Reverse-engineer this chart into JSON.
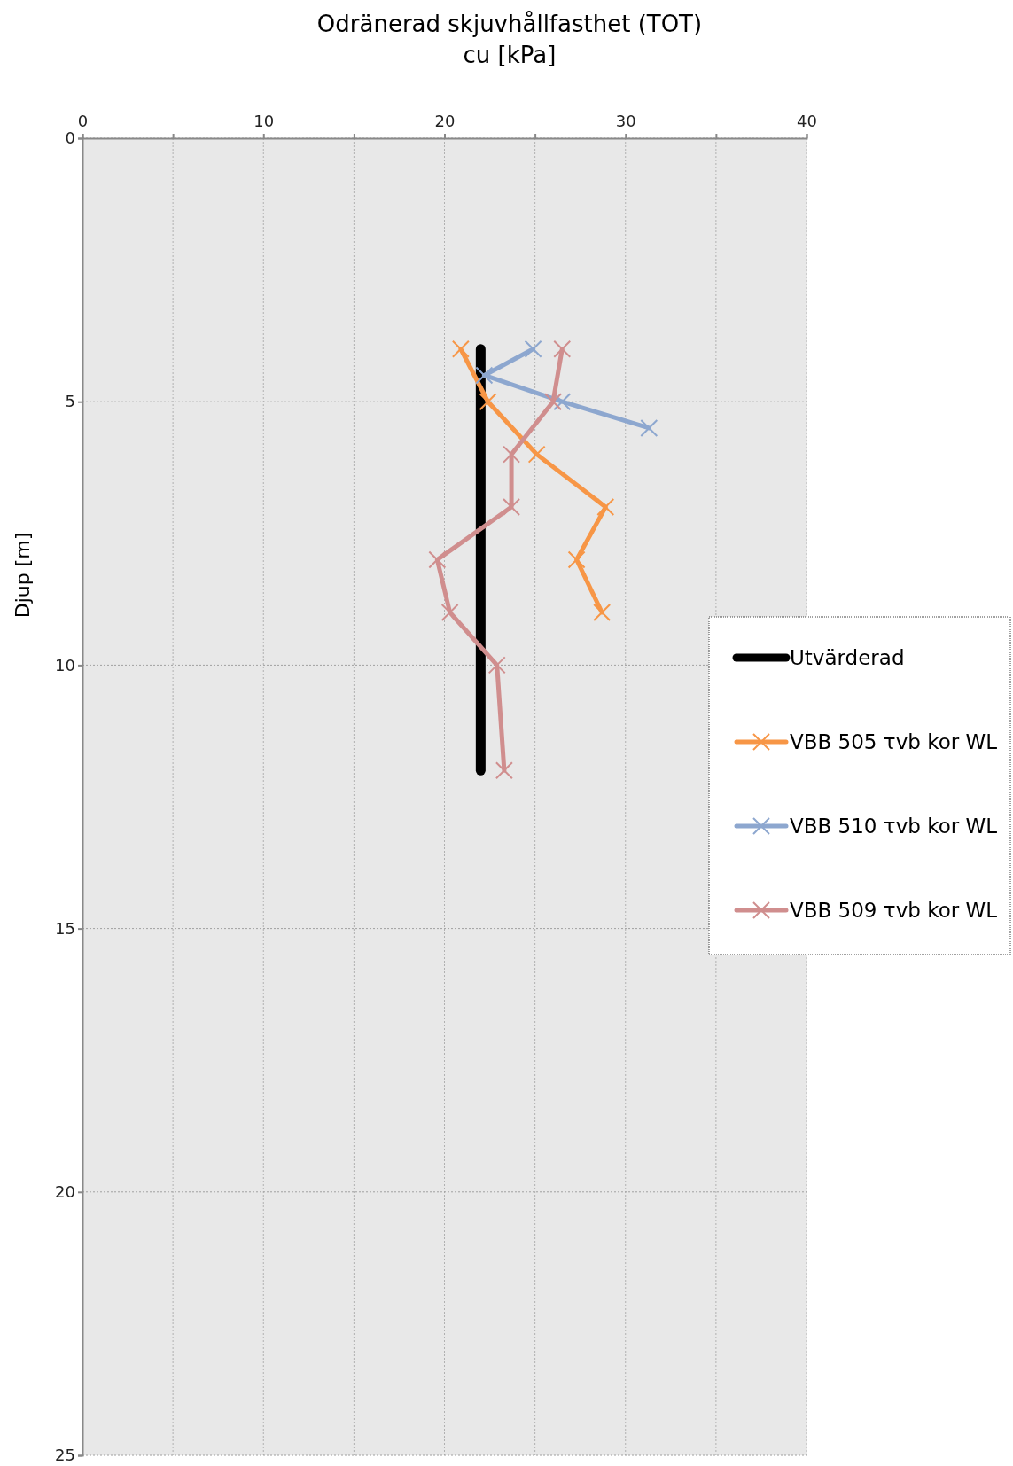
{
  "chart_data": {
    "type": "line",
    "title": "Odränerad skjuvhållfasthet (TOT)",
    "subtitle": "cu [kPa]",
    "ylabel": "Djup [m]",
    "orientation": "horizontal",
    "xlim": [
      0,
      40
    ],
    "xticks": [
      0,
      {
        "value": 5,
        "label": null
      },
      10,
      {
        "value": 15,
        "label": null
      },
      20,
      {
        "value": 25,
        "label": null
      },
      30,
      {
        "value": 35,
        "label": null
      },
      40
    ],
    "ylim": [
      25,
      0
    ],
    "yticks": [
      0,
      5,
      10,
      15,
      20,
      25
    ],
    "grid": true,
    "legend": "right",
    "series": [
      {
        "name": "Utvärderad",
        "color": "#000000",
        "marker": "none",
        "values": [
          22,
          22
        ],
        "x": [
          4,
          12
        ]
      },
      {
        "name": "VBB 505 τvb kor WL",
        "color": "#f79646",
        "marker": "cross",
        "values": [
          20.9,
          22.4,
          25.1,
          28.9,
          27.3,
          28.7
        ],
        "x": [
          4,
          5,
          6,
          7,
          8,
          9
        ]
      },
      {
        "name": "VBB 510 τvb kor WL",
        "color": "#8da7cf",
        "marker": "cross",
        "values": [
          24.9,
          22.2,
          26.5,
          31.3
        ],
        "x": [
          4,
          4.5,
          5,
          5.5
        ]
      },
      {
        "name": "VBB 509 τvb kor WL",
        "color": "#d08e8e",
        "marker": "cross",
        "values": [
          26.5,
          26.0,
          23.7,
          23.7,
          19.6,
          20.3,
          22.9,
          23.3
        ],
        "x": [
          4,
          5,
          6,
          7,
          8,
          9,
          10,
          12
        ]
      }
    ]
  }
}
